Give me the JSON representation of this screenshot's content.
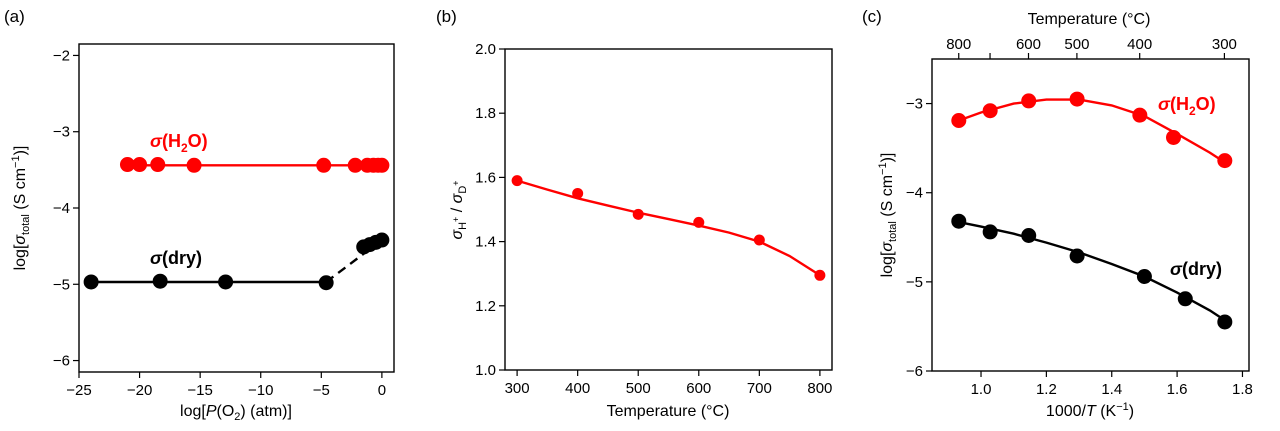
{
  "chart_data": [
    {
      "panel": "(a)",
      "type": "scatter",
      "xlabel": "log[P(O2) (atm)]",
      "ylabel": "log[σtotal (S cm−1)]",
      "xlim": [
        -25,
        1
      ],
      "ylim": [
        -6.15,
        -1.85
      ],
      "xticks": [
        -25,
        -20,
        -15,
        -10,
        -5,
        0
      ],
      "yticks": [
        -6,
        -5,
        -4,
        -3,
        -2
      ],
      "xtick_labels": [
        "−25",
        "−20",
        "−15",
        "−10",
        "−5",
        "0"
      ],
      "ytick_labels": [
        "−6",
        "−5",
        "−4",
        "−3",
        "−2"
      ],
      "series": [
        {
          "name": "σ(H2O)",
          "color": "#ff0000",
          "x": [
            -21.0,
            -20.0,
            -18.5,
            -15.5,
            -4.8,
            -2.2,
            -1.2,
            -0.7,
            -0.3,
            0.0
          ],
          "y": [
            -3.43,
            -3.43,
            -3.43,
            -3.44,
            -3.44,
            -3.44,
            -3.44,
            -3.44,
            -3.44,
            -3.44
          ],
          "fit": {
            "x": [
              -21.0,
              0.0
            ],
            "y": [
              -3.44,
              -3.44
            ],
            "style": "solid"
          }
        },
        {
          "name": "σ(dry)",
          "color": "#000000",
          "x": [
            -24.0,
            -18.3,
            -12.9,
            -4.6,
            -1.5,
            -1.0,
            -0.5,
            0.0
          ],
          "y": [
            -4.97,
            -4.96,
            -4.97,
            -4.98,
            -4.51,
            -4.48,
            -4.45,
            -4.42
          ],
          "fit": {
            "x": [
              -24.0,
              -4.6
            ],
            "y": [
              -4.97,
              -4.97
            ],
            "style": "solid"
          },
          "fit2": {
            "x": [
              -4.6,
              0.0
            ],
            "y": [
              -4.97,
              -4.42
            ],
            "style": "dashed"
          }
        }
      ]
    },
    {
      "panel": "(b)",
      "type": "scatter",
      "xlabel": "Temperature (°C)",
      "ylabel": "σH+ / σD+",
      "xlim": [
        280,
        820
      ],
      "ylim": [
        1.0,
        2.0
      ],
      "xticks": [
        300,
        400,
        500,
        600,
        700,
        800
      ],
      "yticks": [
        1.0,
        1.2,
        1.4,
        1.6,
        1.8,
        2.0
      ],
      "xtick_labels": [
        "300",
        "400",
        "500",
        "600",
        "700",
        "800"
      ],
      "ytick_labels": [
        "1.0",
        "1.2",
        "1.4",
        "1.6",
        "1.8",
        "2.0"
      ],
      "series": [
        {
          "color": "#ff0000",
          "x": [
            300,
            400,
            500,
            600,
            700,
            800
          ],
          "y": [
            1.59,
            1.55,
            1.485,
            1.46,
            1.405,
            1.295
          ],
          "fit": {
            "x": [
              300,
              350,
              400,
              450,
              500,
              550,
              600,
              650,
              700,
              750,
              800
            ],
            "y": [
              1.59,
              1.562,
              1.535,
              1.512,
              1.49,
              1.47,
              1.45,
              1.428,
              1.4,
              1.355,
              1.295
            ],
            "style": "solid"
          }
        }
      ]
    },
    {
      "panel": "(c)",
      "type": "scatter",
      "xlabel": "1000/T (K−1)",
      "ylabel": "log[σtotal (S cm−1)]",
      "top_xlabel": "Temperature (°C)",
      "xlim": [
        0.85,
        1.82
      ],
      "ylim": [
        -6.0,
        -2.5
      ],
      "xticks": [
        1.0,
        1.2,
        1.4,
        1.6,
        1.8
      ],
      "yticks": [
        -6,
        -5,
        -4,
        -3
      ],
      "xtick_labels": [
        "1.0",
        "1.2",
        "1.4",
        "1.6",
        "1.8"
      ],
      "ytick_labels": [
        "−6",
        "−5",
        "−4",
        "−3"
      ],
      "top_ticks": [
        800,
        700,
        600,
        500,
        400,
        300
      ],
      "top_tick_labels": [
        "800",
        "600",
        "500",
        "400",
        "300"
      ],
      "top_tick_labeled": [
        800,
        600,
        500,
        400,
        300
      ],
      "series": [
        {
          "name": "σ(H2O)",
          "color": "#ff0000",
          "x": [
            0.932,
            1.028,
            1.146,
            1.294,
            1.486,
            1.589,
            1.746
          ],
          "y": [
            -3.19,
            -3.08,
            -2.97,
            -2.95,
            -3.13,
            -3.38,
            -3.64
          ],
          "fit": {
            "x": [
              0.932,
              1.0,
              1.1,
              1.2,
              1.3,
              1.4,
              1.5,
              1.6,
              1.7,
              1.746
            ],
            "y": [
              -3.19,
              -3.1,
              -3.0,
              -2.955,
              -2.955,
              -3.02,
              -3.14,
              -3.34,
              -3.55,
              -3.66
            ],
            "style": "solid"
          }
        },
        {
          "name": "σ(dry)",
          "color": "#000000",
          "x": [
            0.932,
            1.028,
            1.146,
            1.294,
            1.5,
            1.625,
            1.746
          ],
          "y": [
            -4.32,
            -4.44,
            -4.48,
            -4.71,
            -4.94,
            -5.19,
            -5.45
          ],
          "fit": {
            "x": [
              0.932,
              1.0,
              1.1,
              1.2,
              1.3,
              1.4,
              1.5,
              1.6,
              1.7,
              1.746
            ],
            "y": [
              -4.33,
              -4.38,
              -4.46,
              -4.56,
              -4.67,
              -4.8,
              -4.94,
              -5.12,
              -5.32,
              -5.43
            ],
            "style": "solid"
          }
        }
      ]
    }
  ]
}
